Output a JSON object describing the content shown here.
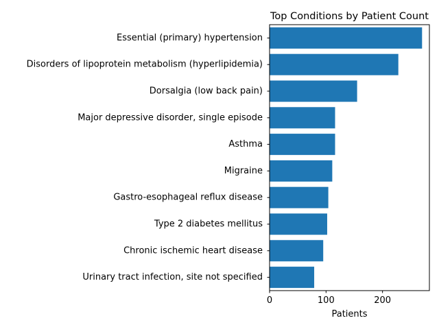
{
  "chart_data": {
    "type": "bar",
    "orientation": "horizontal",
    "title": "Top Conditions by Patient Count",
    "xlabel": "Patients",
    "ylabel": "",
    "xlim": [
      0,
      283
    ],
    "xticks": [
      0,
      100,
      200
    ],
    "grid": false,
    "bar_color": "#1f77b4",
    "categories": [
      "Essential (primary) hypertension",
      "Disorders of lipoprotein metabolism (hyperlipidemia)",
      "Dorsalgia (low back pain)",
      "Major depressive disorder, single episode",
      "Asthma",
      "Migraine",
      "Gastro-esophageal reflux disease",
      "Type 2 diabetes mellitus",
      "Chronic ischemic heart disease",
      "Urinary tract infection, site not specified"
    ],
    "values": [
      270,
      228,
      155,
      116,
      116,
      111,
      104,
      102,
      95,
      79
    ]
  }
}
